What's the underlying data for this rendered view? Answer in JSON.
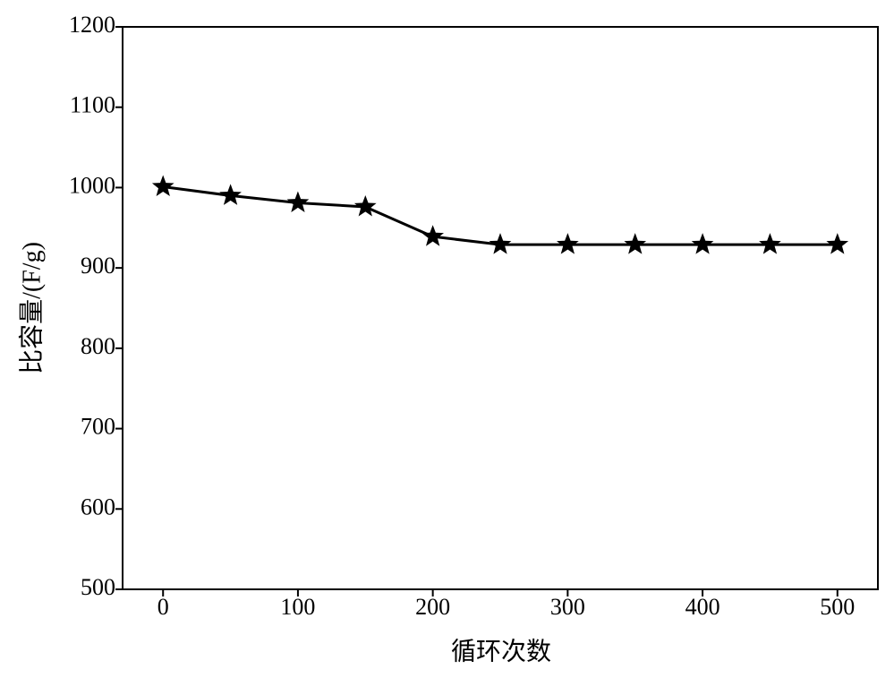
{
  "chart_data": {
    "type": "line",
    "x_label": "循环次数",
    "y_label": "比容量/(F/g)",
    "x": [
      0,
      50,
      100,
      150,
      200,
      250,
      300,
      350,
      400,
      450,
      500
    ],
    "series": [
      {
        "name": "比容量",
        "color": "#000000",
        "values": [
          1001,
          990,
          981,
          976,
          939,
          929,
          929,
          929,
          929,
          929,
          929
        ]
      }
    ],
    "marker": "star",
    "xlim": [
      -30,
      530
    ],
    "xticks": [
      0,
      100,
      200,
      300,
      400,
      500
    ],
    "ylim": [
      500,
      1200
    ],
    "yticks": [
      500,
      600,
      700,
      800,
      900,
      1000,
      1100,
      1200
    ],
    "grid": false
  }
}
